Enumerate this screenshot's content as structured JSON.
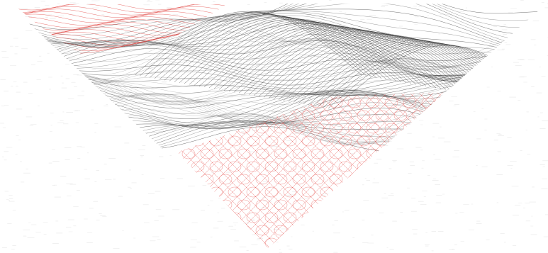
{
  "artwork": {
    "subject": "guilloche-triangle-pattern",
    "colors": {
      "background": "#ffffff",
      "paper_speckle": "#d8d8d8",
      "ink_black": "#2a2a2a",
      "ink_gray": "#6a6a6a",
      "ink_red": "#e0403c",
      "ink_red_light": "#f08a86"
    },
    "bands": [
      {
        "name": "top-left-red-band",
        "color": "red"
      },
      {
        "name": "upper-black-wave",
        "color": "black"
      },
      {
        "name": "mesh-hill-right",
        "color": "black"
      },
      {
        "name": "mid-black-wave",
        "color": "black"
      },
      {
        "name": "lower-red-rosette-field",
        "color": "red"
      }
    ]
  }
}
